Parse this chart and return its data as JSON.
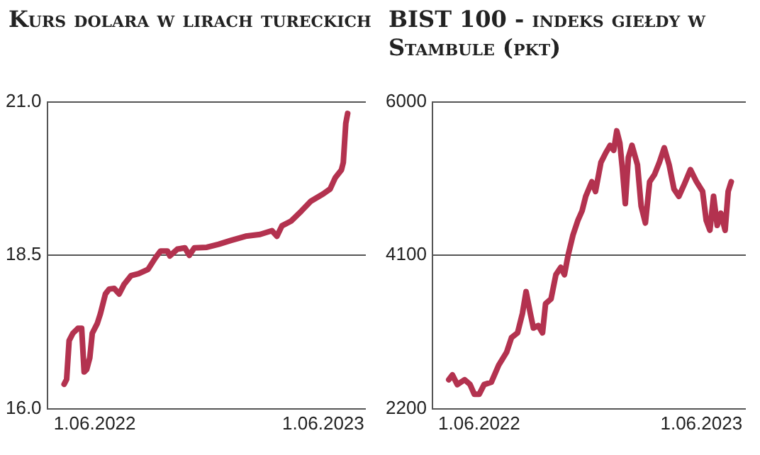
{
  "chart_data": [
    {
      "type": "line",
      "title": "Kurs dolara w lirach tureckich",
      "color": "#b3324f",
      "grid": "y",
      "x": [
        "2022-04-13",
        "2022-04-17",
        "2022-04-21",
        "2022-04-27",
        "2022-05-05",
        "2022-05-11",
        "2022-05-15",
        "2022-05-19",
        "2022-05-24",
        "2022-05-28",
        "2022-06-05",
        "2022-06-10",
        "2022-06-18",
        "2022-06-24",
        "2022-07-02",
        "2022-07-10",
        "2022-07-18",
        "2022-07-29",
        "2022-08-10",
        "2022-08-25",
        "2022-09-06",
        "2022-09-14",
        "2022-09-25",
        "2022-09-29",
        "2022-10-11",
        "2022-10-23",
        "2022-10-30",
        "2022-11-07",
        "2022-11-27",
        "2022-12-16",
        "2023-01-04",
        "2023-01-28",
        "2023-02-20",
        "2023-03-11",
        "2023-03-19",
        "2023-03-27",
        "2023-04-11",
        "2023-04-27",
        "2023-05-12",
        "2023-06-01",
        "2023-06-12",
        "2023-06-20",
        "2023-06-30",
        "2023-07-03",
        "2023-07-07",
        "2023-07-10"
      ],
      "values": [
        16.4,
        16.48,
        17.11,
        17.23,
        17.31,
        17.31,
        16.6,
        16.64,
        16.83,
        17.23,
        17.39,
        17.55,
        17.87,
        17.95,
        17.96,
        17.87,
        18.03,
        18.17,
        18.2,
        18.27,
        18.46,
        18.57,
        18.57,
        18.49,
        18.6,
        18.62,
        18.5,
        18.62,
        18.63,
        18.68,
        18.74,
        18.81,
        18.84,
        18.9,
        18.81,
        18.98,
        19.06,
        19.22,
        19.38,
        19.5,
        19.58,
        19.76,
        19.89,
        20.01,
        20.65,
        20.81
      ],
      "xlim": [
        "2022-03-17",
        "2023-08-08"
      ],
      "xticks": [
        {
          "value": "2022-06-01",
          "label": "1.06.2022"
        },
        {
          "value": "2023-06-01",
          "label": "1.06.2023"
        }
      ],
      "ylim": [
        16,
        21
      ],
      "yticks": [
        {
          "value": 16,
          "label": "16.0"
        },
        {
          "value": 18.5,
          "label": "18.5"
        },
        {
          "value": 21,
          "label": "21.0"
        }
      ]
    },
    {
      "type": "line",
      "title": "BIST 100 - indeks giełdy w Stambule (pkt)",
      "color": "#b3324f",
      "grid": "y",
      "x": [
        "2022-04-12",
        "2022-04-18",
        "2022-04-26",
        "2022-05-08",
        "2022-05-17",
        "2022-05-24",
        "2022-06-01",
        "2022-06-09",
        "2022-06-21",
        "2022-07-03",
        "2022-07-16",
        "2022-07-24",
        "2022-08-03",
        "2022-08-11",
        "2022-08-17",
        "2022-08-24",
        "2022-08-29",
        "2022-09-06",
        "2022-09-13",
        "2022-09-18",
        "2022-09-27",
        "2022-10-05",
        "2022-10-13",
        "2022-10-19",
        "2022-10-25",
        "2022-11-02",
        "2022-11-10",
        "2022-11-17",
        "2022-11-23",
        "2022-12-03",
        "2022-12-09",
        "2022-12-18",
        "2022-12-26",
        "2023-01-02",
        "2023-01-08",
        "2023-01-13",
        "2023-01-18",
        "2023-01-22",
        "2023-01-27",
        "2023-02-01",
        "2023-02-07",
        "2023-02-16",
        "2023-02-22",
        "2023-03-01",
        "2023-03-08",
        "2023-03-16",
        "2023-03-24",
        "2023-04-01",
        "2023-04-09",
        "2023-04-17",
        "2023-04-25",
        "2023-05-04",
        "2023-05-14",
        "2023-05-24",
        "2023-06-03",
        "2023-06-09",
        "2023-06-15",
        "2023-06-21",
        "2023-06-27",
        "2023-07-03",
        "2023-07-10",
        "2023-07-15",
        "2023-07-20"
      ],
      "values": [
        2560,
        2620,
        2500,
        2560,
        2500,
        2380,
        2380,
        2500,
        2530,
        2740,
        2900,
        3080,
        3140,
        3380,
        3650,
        3380,
        3200,
        3230,
        3140,
        3500,
        3560,
        3860,
        3950,
        3860,
        4100,
        4350,
        4530,
        4650,
        4830,
        5010,
        4890,
        5250,
        5370,
        5460,
        5400,
        5640,
        5490,
        5190,
        4740,
        5310,
        5460,
        5220,
        4710,
        4500,
        5010,
        5100,
        5250,
        5430,
        5220,
        4920,
        4830,
        4980,
        5160,
        5010,
        4890,
        4530,
        4410,
        4830,
        4470,
        4620,
        4410,
        4890,
        5010
      ],
      "xlim": [
        "2022-03-16",
        "2023-08-13"
      ],
      "xticks": [
        {
          "value": "2022-06-01",
          "label": "1.06.2022"
        },
        {
          "value": "2023-06-01",
          "label": "1.06.2023"
        }
      ],
      "ylim": [
        2200,
        6000
      ],
      "yticks": [
        2200,
        4100,
        6000
      ]
    }
  ]
}
